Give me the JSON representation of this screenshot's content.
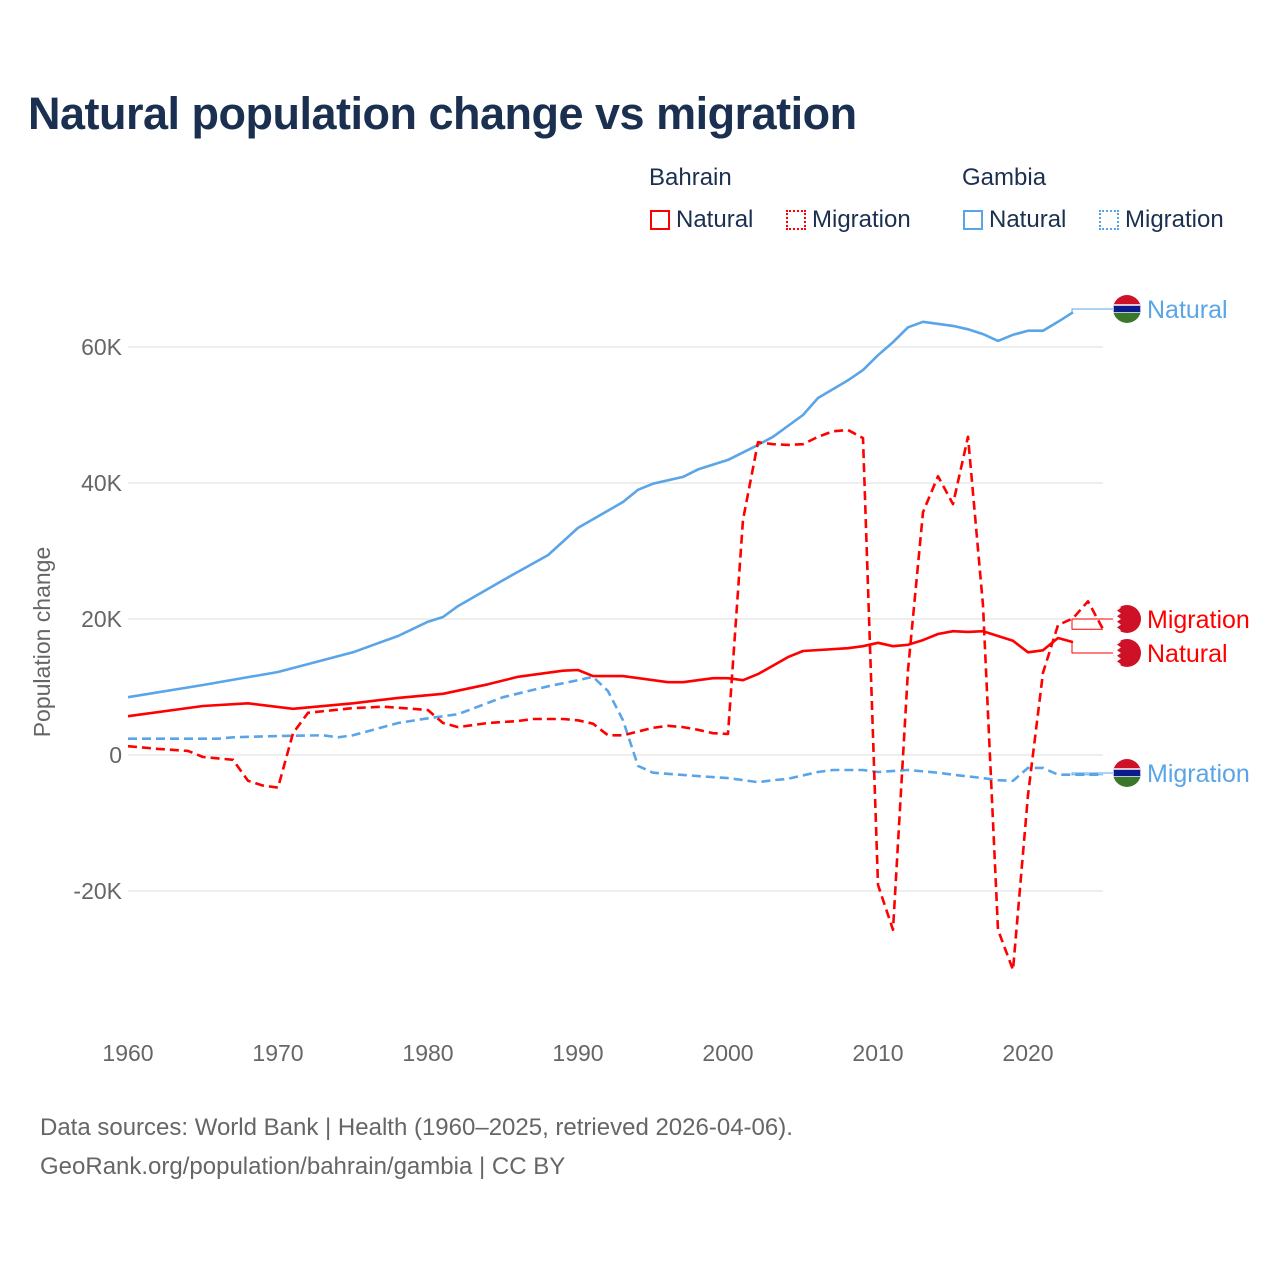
{
  "chart_data": {
    "type": "line",
    "title": "Natural population change vs migration",
    "xlabel": "",
    "ylabel": "Population change",
    "xlim": [
      1960,
      2025
    ],
    "ylim": [
      -35000,
      70000
    ],
    "x_ticks": [
      1960,
      1970,
      1980,
      1990,
      2000,
      2010,
      2020
    ],
    "x_tick_labels": [
      "1960",
      "1970",
      "1980",
      "1990",
      "2000",
      "2010",
      "2020"
    ],
    "y_ticks": [
      -20000,
      0,
      20000,
      40000,
      60000
    ],
    "y_tick_labels": [
      "-20K",
      "0",
      "20K",
      "40K",
      "60K"
    ],
    "grid": true,
    "legend_placement": "top-right",
    "legend": {
      "groups": [
        {
          "name": "Bahrain",
          "items": [
            "Natural",
            "Migration"
          ]
        },
        {
          "name": "Gambia",
          "items": [
            "Natural",
            "Migration"
          ]
        }
      ]
    },
    "series": [
      {
        "country": "Gambia",
        "name": "Natural",
        "label": "Natural",
        "color": "#5aa5e8",
        "dashed": false,
        "points": [
          [
            1960,
            8500
          ],
          [
            1965,
            10300
          ],
          [
            1970,
            12200
          ],
          [
            1975,
            15100
          ],
          [
            1978,
            17500
          ],
          [
            1980,
            19600
          ],
          [
            1981,
            20300
          ],
          [
            1982,
            21900
          ],
          [
            1985,
            25700
          ],
          [
            1988,
            29400
          ],
          [
            1990,
            33400
          ],
          [
            1993,
            37200
          ],
          [
            1994,
            39000
          ],
          [
            1995,
            39900
          ],
          [
            1997,
            40900
          ],
          [
            1998,
            42000
          ],
          [
            2000,
            43400
          ],
          [
            2002,
            45600
          ],
          [
            2003,
            46800
          ],
          [
            2005,
            50000
          ],
          [
            2006,
            52500
          ],
          [
            2008,
            55100
          ],
          [
            2009,
            56600
          ],
          [
            2010,
            58800
          ],
          [
            2011,
            60700
          ],
          [
            2012,
            62900
          ],
          [
            2013,
            63700
          ],
          [
            2015,
            63100
          ],
          [
            2016,
            62600
          ],
          [
            2017,
            61900
          ],
          [
            2018,
            60900
          ],
          [
            2019,
            61800
          ],
          [
            2020,
            62400
          ],
          [
            2021,
            62400
          ],
          [
            2022,
            63700
          ],
          [
            2023,
            65100
          ]
        ]
      },
      {
        "country": "Gambia",
        "name": "Migration",
        "label": "Migration",
        "color": "#5aa5e8",
        "dashed": true,
        "points": [
          [
            1960,
            2400
          ],
          [
            1966,
            2400
          ],
          [
            1967,
            2600
          ],
          [
            1970,
            2800
          ],
          [
            1973,
            2900
          ],
          [
            1974,
            2600
          ],
          [
            1975,
            2900
          ],
          [
            1978,
            4700
          ],
          [
            1980,
            5400
          ],
          [
            1982,
            6000
          ],
          [
            1985,
            8500
          ],
          [
            1988,
            10100
          ],
          [
            1990,
            11000
          ],
          [
            1991,
            11500
          ],
          [
            1992,
            9400
          ],
          [
            1993,
            5100
          ],
          [
            1994,
            -1600
          ],
          [
            1995,
            -2600
          ],
          [
            1998,
            -3100
          ],
          [
            2000,
            -3400
          ],
          [
            2002,
            -4000
          ],
          [
            2003,
            -3700
          ],
          [
            2004,
            -3500
          ],
          [
            2006,
            -2500
          ],
          [
            2007,
            -2200
          ],
          [
            2009,
            -2200
          ],
          [
            2010,
            -2500
          ],
          [
            2012,
            -2200
          ],
          [
            2014,
            -2600
          ],
          [
            2015,
            -2900
          ],
          [
            2017,
            -3400
          ],
          [
            2018,
            -3700
          ],
          [
            2019,
            -3800
          ],
          [
            2020,
            -1900
          ],
          [
            2021,
            -1900
          ],
          [
            2022,
            -2900
          ],
          [
            2025,
            -2900
          ]
        ]
      },
      {
        "country": "Bahrain",
        "name": "Natural",
        "label": "Natural",
        "color": "#ff0000",
        "dashed": false,
        "points": [
          [
            1960,
            5700
          ],
          [
            1965,
            7200
          ],
          [
            1968,
            7600
          ],
          [
            1971,
            6800
          ],
          [
            1975,
            7600
          ],
          [
            1978,
            8400
          ],
          [
            1981,
            9000
          ],
          [
            1984,
            10400
          ],
          [
            1986,
            11500
          ],
          [
            1989,
            12400
          ],
          [
            1990,
            12500
          ],
          [
            1991,
            11600
          ],
          [
            1993,
            11600
          ],
          [
            1996,
            10700
          ],
          [
            1997,
            10700
          ],
          [
            1999,
            11300
          ],
          [
            2000,
            11300
          ],
          [
            2001,
            11000
          ],
          [
            2002,
            11900
          ],
          [
            2004,
            14400
          ],
          [
            2005,
            15300
          ],
          [
            2008,
            15700
          ],
          [
            2009,
            16000
          ],
          [
            2010,
            16500
          ],
          [
            2011,
            16000
          ],
          [
            2012,
            16200
          ],
          [
            2013,
            16900
          ],
          [
            2014,
            17800
          ],
          [
            2015,
            18200
          ],
          [
            2016,
            18100
          ],
          [
            2017,
            18200
          ],
          [
            2018,
            17500
          ],
          [
            2019,
            16800
          ],
          [
            2020,
            15100
          ],
          [
            2021,
            15400
          ],
          [
            2022,
            17200
          ],
          [
            2023,
            16600
          ]
        ]
      },
      {
        "country": "Bahrain",
        "name": "Migration",
        "label": "Migration",
        "color": "#ff0000",
        "dashed": true,
        "points": [
          [
            1960,
            1300
          ],
          [
            1962,
            900
          ],
          [
            1964,
            600
          ],
          [
            1965,
            -300
          ],
          [
            1967,
            -700
          ],
          [
            1968,
            -3800
          ],
          [
            1969,
            -4500
          ],
          [
            1970,
            -4800
          ],
          [
            1971,
            3200
          ],
          [
            1972,
            6200
          ],
          [
            1975,
            6900
          ],
          [
            1977,
            7100
          ],
          [
            1979,
            6800
          ],
          [
            1980,
            6600
          ],
          [
            1981,
            4700
          ],
          [
            1982,
            4100
          ],
          [
            1984,
            4700
          ],
          [
            1986,
            5000
          ],
          [
            1987,
            5300
          ],
          [
            1989,
            5300
          ],
          [
            1990,
            5100
          ],
          [
            1991,
            4600
          ],
          [
            1992,
            2900
          ],
          [
            1993,
            2900
          ],
          [
            1995,
            4000
          ],
          [
            1996,
            4300
          ],
          [
            1997,
            4100
          ],
          [
            1998,
            3700
          ],
          [
            1999,
            3200
          ],
          [
            2000,
            3100
          ],
          [
            2001,
            34600
          ],
          [
            2002,
            46000
          ],
          [
            2003,
            45700
          ],
          [
            2004,
            45600
          ],
          [
            2005,
            45700
          ],
          [
            2006,
            46800
          ],
          [
            2007,
            47600
          ],
          [
            2008,
            47800
          ],
          [
            2009,
            46600
          ],
          [
            2010,
            -19100
          ],
          [
            2011,
            -25700
          ],
          [
            2012,
            12500
          ],
          [
            2013,
            35700
          ],
          [
            2014,
            41000
          ],
          [
            2015,
            36900
          ],
          [
            2016,
            46800
          ],
          [
            2017,
            22000
          ],
          [
            2018,
            -25700
          ],
          [
            2019,
            -31600
          ],
          [
            2020,
            -5900
          ],
          [
            2021,
            12100
          ],
          [
            2022,
            19100
          ],
          [
            2023,
            20100
          ],
          [
            2024,
            22600
          ],
          [
            2025,
            18500
          ]
        ]
      }
    ]
  },
  "footer": {
    "line1": "Data sources: World Bank | Health (1960–2025, retrieved 2026-04-06).",
    "line2": "GeoRank.org/population/bahrain/gambia | CC BY"
  }
}
